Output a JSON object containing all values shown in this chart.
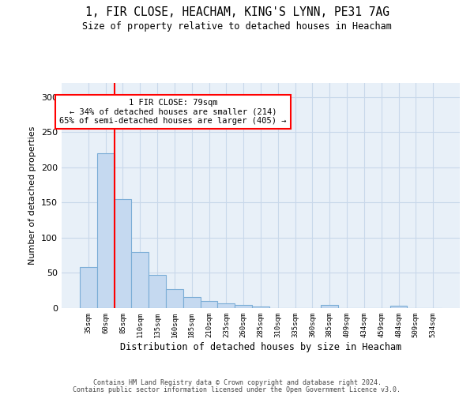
{
  "title1": "1, FIR CLOSE, HEACHAM, KING'S LYNN, PE31 7AG",
  "title2": "Size of property relative to detached houses in Heacham",
  "xlabel": "Distribution of detached houses by size in Heacham",
  "ylabel": "Number of detached properties",
  "bar_labels": [
    "35sqm",
    "60sqm",
    "85sqm",
    "110sqm",
    "135sqm",
    "160sqm",
    "185sqm",
    "210sqm",
    "235sqm",
    "260sqm",
    "285sqm",
    "310sqm",
    "335sqm",
    "360sqm",
    "385sqm",
    "409sqm",
    "434sqm",
    "459sqm",
    "484sqm",
    "509sqm",
    "534sqm"
  ],
  "bar_values": [
    58,
    220,
    155,
    80,
    47,
    27,
    16,
    10,
    7,
    4,
    2,
    0,
    0,
    0,
    4,
    0,
    0,
    0,
    3,
    0,
    0
  ],
  "bar_color": "#c5d9f0",
  "bar_edge_color": "#7badd6",
  "vline_color": "red",
  "annotation_text": "1 FIR CLOSE: 79sqm\n← 34% of detached houses are smaller (214)\n65% of semi-detached houses are larger (405) →",
  "annotation_box_color": "white",
  "annotation_box_edge": "red",
  "ylim": [
    0,
    320
  ],
  "yticks": [
    0,
    50,
    100,
    150,
    200,
    250,
    300
  ],
  "footer1": "Contains HM Land Registry data © Crown copyright and database right 2024.",
  "footer2": "Contains public sector information licensed under the Open Government Licence v3.0.",
  "bg_color": "white",
  "grid_color": "#c8d8ea",
  "ax_bg_color": "#e8f0f8"
}
